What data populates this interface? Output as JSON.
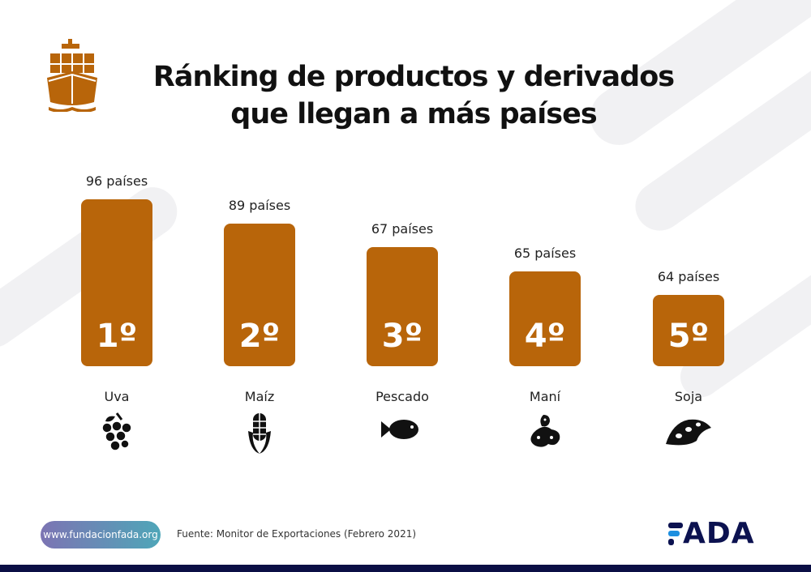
{
  "title_line1": "Ránking de productos y derivados",
  "title_line2": "que llegan a más países",
  "chart_data": {
    "type": "bar",
    "categories": [
      "Uva",
      "Maíz",
      "Pescado",
      "Maní",
      "Soja"
    ],
    "values": [
      96,
      89,
      67,
      65,
      64
    ],
    "value_labels": [
      "96 países",
      "89 países",
      "67 países",
      "65 países",
      "64 países"
    ],
    "ranks": [
      "1º",
      "2º",
      "3º",
      "4º",
      "5º"
    ],
    "icons": [
      "grapes-icon",
      "corn-icon",
      "fish-icon",
      "peanut-icon",
      "soybean-icon"
    ],
    "bar_color": "#b8650a"
  },
  "footer": {
    "url": "www.fundacionfada.org",
    "source": "Fuente: Monitor de Exportaciones (Febrero 2021)",
    "logo": "FADA"
  },
  "colors": {
    "accent": "#b8650a",
    "navy": "#0b0f45",
    "logo_blue": "#1e8fe0"
  }
}
